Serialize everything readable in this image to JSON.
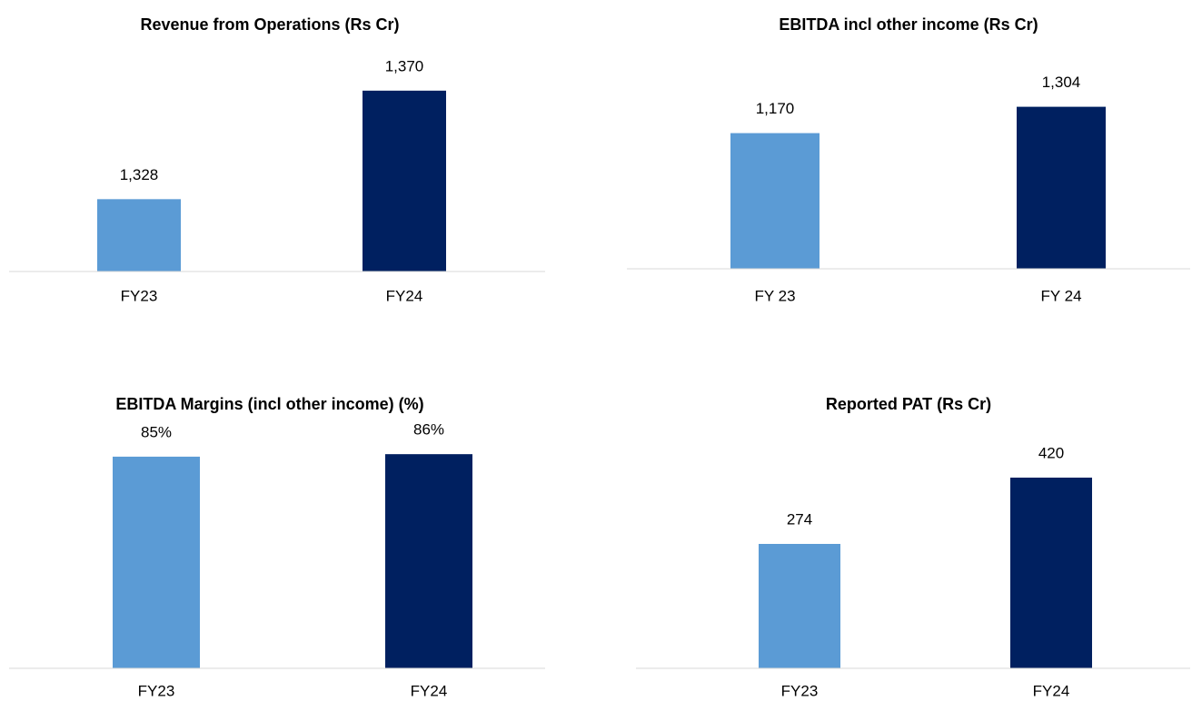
{
  "chart_data": [
    {
      "type": "bar",
      "title": "Revenue from Operations (Rs Cr)",
      "categories": [
        "FY23",
        "FY24"
      ],
      "values": [
        1328,
        1370
      ],
      "value_labels": [
        "1,328",
        "1,370"
      ],
      "colors": [
        "#5b9bd5",
        "#002060"
      ],
      "ylim": [
        1300,
        1384
      ]
    },
    {
      "type": "bar",
      "title": "EBITDA incl other income (Rs Cr)",
      "categories": [
        "FY 23",
        "FY 24"
      ],
      "values": [
        1170,
        1304
      ],
      "value_labels": [
        "1,170",
        "1,304"
      ],
      "colors": [
        "#5b9bd5",
        "#002060"
      ],
      "ylim": [
        480,
        1570
      ]
    },
    {
      "type": "bar",
      "title": "EBITDA Margins (incl other income) (%)",
      "categories": [
        "FY23",
        "FY24"
      ],
      "values": [
        85,
        86
      ],
      "value_labels": [
        "85%",
        "86%"
      ],
      "colors": [
        "#5b9bd5",
        "#002060"
      ],
      "ylim": [
        0,
        97
      ]
    },
    {
      "type": "bar",
      "title": "Reported PAT (Rs Cr)",
      "categories": [
        "FY23",
        "FY24"
      ],
      "values": [
        274,
        420
      ],
      "colors": [
        "#5b9bd5",
        "#002060"
      ],
      "ylim": [
        0,
        532
      ]
    }
  ]
}
